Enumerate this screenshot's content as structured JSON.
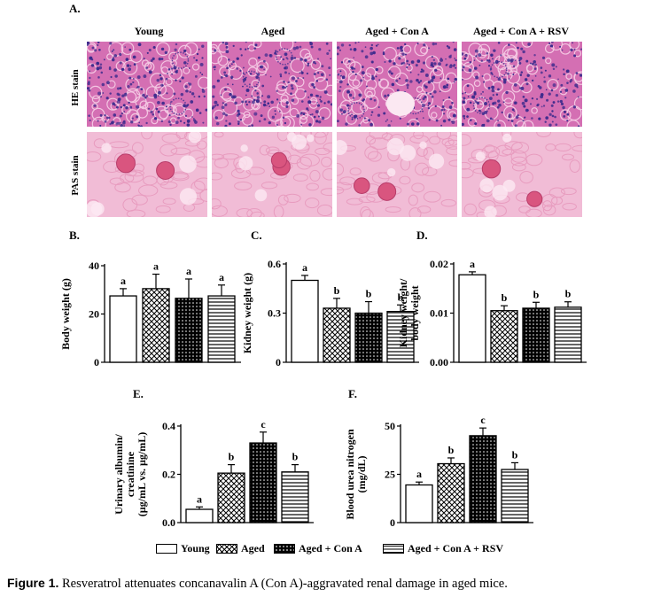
{
  "panel_a": {
    "letter": "A.",
    "columns": [
      "Young",
      "Aged",
      "Aged + Con A",
      "Aged + Con A + RSV"
    ],
    "rows": [
      "HE stain",
      "PAS stain"
    ]
  },
  "legend": [
    "Young",
    "Aged",
    "Aged + Con A",
    "Aged + Con A + RSV"
  ],
  "caption": {
    "label": "Figure 1.",
    "text": " Resveratrol attenuates concanavalin A (Con A)-aggravated renal damage in aged mice."
  },
  "colors": {
    "he_base": "#d46fb3",
    "he_nuclei": "#3b2a8c",
    "pas_base": "#f1bcd6",
    "pas_glom": "#d9557f"
  },
  "chart_data": [
    {
      "id": "B",
      "letter": "B.",
      "type": "bar",
      "categories": [
        "Young",
        "Aged",
        "Aged + Con A",
        "Aged + Con A + RSV"
      ],
      "values": [
        27.5,
        30.5,
        26.5,
        27.5
      ],
      "errors": [
        3,
        6,
        8,
        4.5
      ],
      "labels": [
        "a",
        "a",
        "a",
        "a"
      ],
      "ylabel": "Body weight  (g)",
      "ylim": [
        0,
        40
      ],
      "yticks": [
        "0",
        "20",
        "40"
      ],
      "ytick_values": [
        0,
        20,
        40
      ]
    },
    {
      "id": "C",
      "letter": "C.",
      "type": "bar",
      "categories": [
        "Young",
        "Aged",
        "Aged + Con A",
        "Aged + Con A + RSV"
      ],
      "values": [
        0.5,
        0.33,
        0.3,
        0.31
      ],
      "errors": [
        0.03,
        0.06,
        0.07,
        0.04
      ],
      "labels": [
        "a",
        "b",
        "b",
        "b"
      ],
      "ylabel": "Kidney weight (g)",
      "ylim": [
        0,
        0.6
      ],
      "yticks": [
        "0",
        "0.3",
        "0.6"
      ],
      "ytick_values": [
        0,
        0.3,
        0.6
      ]
    },
    {
      "id": "D",
      "letter": "D.",
      "type": "bar",
      "categories": [
        "Young",
        "Aged",
        "Aged + Con A",
        "Aged + Con A + RSV"
      ],
      "values": [
        0.0178,
        0.0105,
        0.011,
        0.0112
      ],
      "errors": [
        0.0006,
        0.001,
        0.0012,
        0.0011
      ],
      "labels": [
        "a",
        "b",
        "b",
        "b"
      ],
      "ylabel": [
        "Kidney weight/",
        "body weight"
      ],
      "ylim": [
        0,
        0.02
      ],
      "yticks": [
        "0.00",
        "0.01",
        "0.02"
      ],
      "ytick_values": [
        0,
        0.01,
        0.02
      ]
    },
    {
      "id": "E",
      "letter": "E.",
      "type": "bar",
      "categories": [
        "Young",
        "Aged",
        "Aged + Con A",
        "Aged + Con A + RSV"
      ],
      "values": [
        0.055,
        0.205,
        0.33,
        0.21
      ],
      "errors": [
        0.01,
        0.035,
        0.045,
        0.03
      ],
      "labels": [
        "a",
        "b",
        "c",
        "b"
      ],
      "ylabel": [
        "Urinary albumin/",
        "creatinine",
        "(µg/mL vs. µg/mL)"
      ],
      "ylim": [
        0,
        0.4
      ],
      "yticks": [
        "0.0",
        "0.2",
        "0.4"
      ],
      "ytick_values": [
        0,
        0.2,
        0.4
      ]
    },
    {
      "id": "F",
      "letter": "F.",
      "type": "bar",
      "categories": [
        "Young",
        "Aged",
        "Aged + Con A",
        "Aged + Con A + RSV"
      ],
      "values": [
        19.5,
        30.5,
        45,
        27.5
      ],
      "errors": [
        1.5,
        3,
        4,
        3.5
      ],
      "labels": [
        "a",
        "b",
        "c",
        "b"
      ],
      "ylabel": [
        "Blood urea nitrogen",
        "(mg/dL)"
      ],
      "ylim": [
        0,
        50
      ],
      "yticks": [
        "0",
        "25",
        "50"
      ],
      "ytick_values": [
        0,
        25,
        50
      ]
    }
  ]
}
